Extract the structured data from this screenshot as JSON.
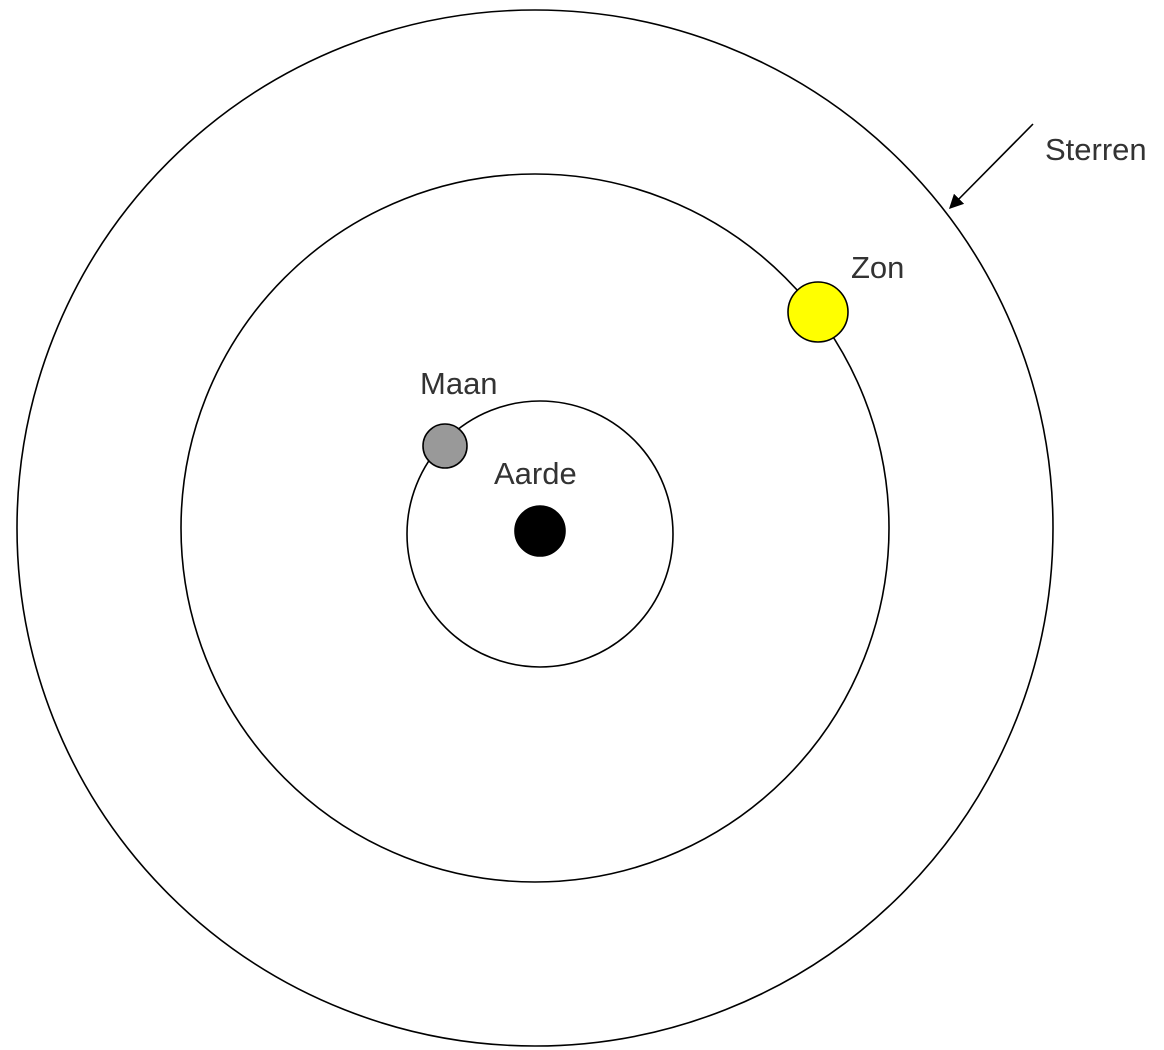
{
  "labels": {
    "stars": "Sterren",
    "sun": "Zon",
    "moon": "Maan",
    "earth": "Aarde"
  },
  "colors": {
    "background": "#ffffff",
    "orbit_stroke": "#000000",
    "earth": "#000000",
    "moon": "#999999",
    "sun": "#ffff00",
    "label_text": "#333333"
  },
  "icons": {
    "pointer": "arrow-icon"
  }
}
